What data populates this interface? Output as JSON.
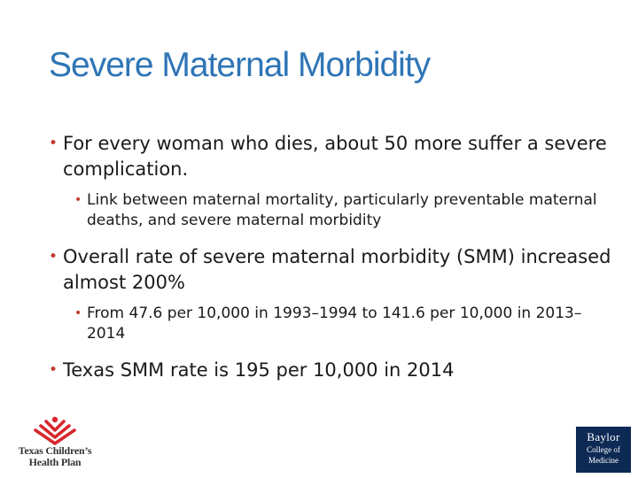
{
  "slide": {
    "title": "Severe Maternal Morbidity",
    "bullets": [
      {
        "text": "For every woman who dies, about 50 more suffer a severe complication.",
        "sub": [
          "Link between maternal mortality, particularly preventable maternal deaths, and severe maternal morbidity"
        ]
      },
      {
        "text": "Overall rate of severe maternal morbidity (SMM) increased almost 200%",
        "sub": [
          "From 47.6 per 10,000 in 1993–1994 to 141.6 per 10,000 in 2013–2014"
        ]
      },
      {
        "text": "Texas SMM rate is 195 per 10,000 in 2014",
        "sub": []
      }
    ]
  },
  "logos": {
    "left": {
      "line1": "Texas Children’s",
      "line2": "Health Plan",
      "icon": "tch-heart-chevron-icon",
      "color": "#d9262e"
    },
    "right": {
      "line1": "Baylor",
      "line2": "College of",
      "line3": "Medicine",
      "color": "#0d2a55"
    }
  },
  "colors": {
    "title": "#2e75b6",
    "bullet": "#c0392b",
    "text": "#1a1a1a"
  }
}
